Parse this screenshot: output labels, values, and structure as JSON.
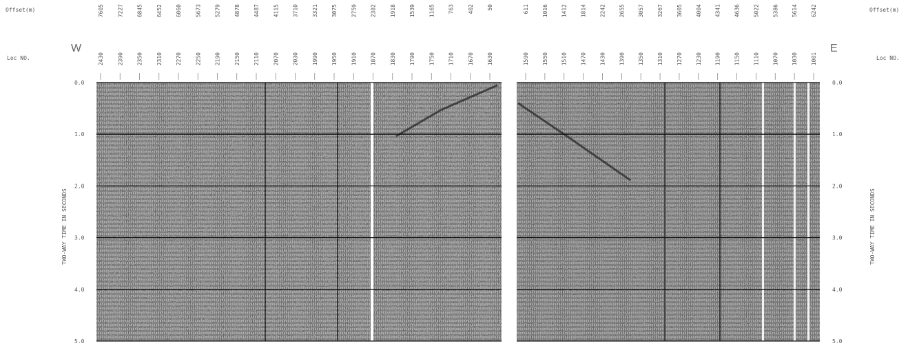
{
  "chart_data": {
    "type": "seismic-section",
    "header": {
      "offset_label": "Offset(m)",
      "loc_label": "Loc NO.",
      "west_label": "W",
      "east_label": "E"
    },
    "yaxis": {
      "label": "TWO-WAY TIME IN SECONDS",
      "ticks": [
        "0.0",
        "1.0",
        "2.0",
        "3.0",
        "4.0",
        "5.0"
      ],
      "ylim": [
        0,
        5
      ],
      "inverted": true
    },
    "west_panel": {
      "offsets": [
        "7605",
        "7227",
        "6845",
        "6452",
        "6060",
        "5673",
        "5279",
        "4878",
        "4487",
        "4115",
        "3710",
        "3321",
        "3075",
        "2759",
        "2382",
        "1918",
        "1539",
        "1165",
        "763",
        "402",
        "50"
      ],
      "loc_numbers": [
        "2430",
        "2390",
        "2350",
        "2310",
        "2270",
        "2250",
        "2190",
        "2150",
        "2110",
        "2070",
        "2030",
        "1990",
        "1950",
        "1910",
        "1870",
        "1830",
        "1790",
        "1750",
        "1710",
        "1670",
        "1630"
      ]
    },
    "east_panel": {
      "offsets": [
        "611",
        "1016",
        "1412",
        "1814",
        "2242",
        "2655",
        "3057",
        "3267",
        "3605",
        "4004",
        "4341",
        "4636",
        "5022",
        "5386",
        "5614",
        "6242"
      ],
      "loc_numbers": [
        "1590",
        "1550",
        "1510",
        "1470",
        "1430",
        "1390",
        "1350",
        "1310",
        "1270",
        "1230",
        "1190",
        "1150",
        "1110",
        "1070",
        "1030",
        "1001"
      ]
    },
    "grid": true
  }
}
